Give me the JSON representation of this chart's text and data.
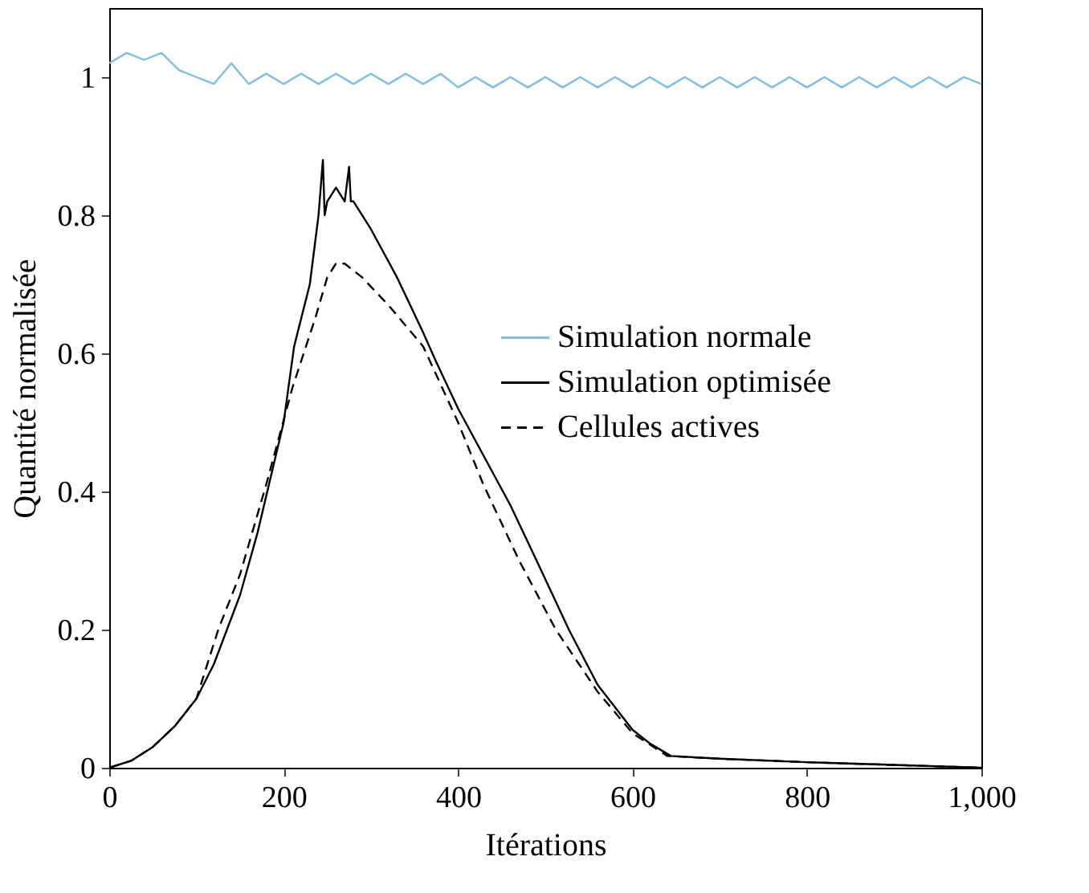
{
  "chart_data": {
    "type": "line",
    "xlabel": "Itérations",
    "ylabel": "Quantité normalisée",
    "xlim": [
      0,
      1000
    ],
    "ylim": [
      0,
      1.1
    ],
    "xticks": [
      0,
      200,
      400,
      600,
      800,
      {
        "value": 1000,
        "label": "1,000"
      }
    ],
    "yticks": [
      0,
      0.2,
      0.4,
      0.6,
      0.8,
      1
    ],
    "grid": false,
    "legend": "right",
    "series": [
      {
        "name": "Simulation normale",
        "color": "#7fbce6",
        "line_style": "solid",
        "x": [
          0,
          20,
          40,
          60,
          80,
          100,
          120,
          140,
          160,
          180,
          200,
          220,
          240,
          260,
          280,
          300,
          320,
          340,
          360,
          380,
          400,
          420,
          440,
          460,
          480,
          500,
          520,
          540,
          560,
          580,
          600,
          620,
          640,
          660,
          680,
          700,
          720,
          740,
          760,
          780,
          800,
          820,
          840,
          860,
          880,
          900,
          920,
          940,
          960,
          980,
          1000
        ],
        "values": [
          1.02,
          1.035,
          1.025,
          1.035,
          1.01,
          1.0,
          0.99,
          1.02,
          0.99,
          1.005,
          0.99,
          1.005,
          0.99,
          1.005,
          0.99,
          1.005,
          0.99,
          1.005,
          0.99,
          1.005,
          0.985,
          1.0,
          0.985,
          1.0,
          0.985,
          1.0,
          0.985,
          1.0,
          0.985,
          1.0,
          0.985,
          1.0,
          0.985,
          1.0,
          0.985,
          1.0,
          0.985,
          1.0,
          0.985,
          1.0,
          0.985,
          1.0,
          0.985,
          1.0,
          0.985,
          1.0,
          0.985,
          1.0,
          0.985,
          1.0,
          0.99
        ]
      },
      {
        "name": "Simulation optimisée",
        "color": "#000000",
        "line_style": "solid",
        "x": [
          0,
          25,
          50,
          75,
          100,
          120,
          150,
          170,
          200,
          212,
          230,
          240,
          245,
          247,
          250,
          260,
          270,
          275,
          277,
          280,
          300,
          330,
          360,
          374,
          400,
          430,
          460,
          490,
          527,
          560,
          600,
          620,
          644,
          700,
          800,
          900,
          1000
        ],
        "values": [
          0,
          0.01,
          0.03,
          0.06,
          0.1,
          0.15,
          0.25,
          0.34,
          0.5,
          0.61,
          0.7,
          0.8,
          0.88,
          0.8,
          0.82,
          0.84,
          0.82,
          0.87,
          0.82,
          0.82,
          0.78,
          0.71,
          0.63,
          0.59,
          0.52,
          0.45,
          0.38,
          0.3,
          0.2,
          0.12,
          0.055,
          0.035,
          0.017,
          0.013,
          0.008,
          0.004,
          0.0
        ]
      },
      {
        "name": "Cellules actives",
        "color": "#000000",
        "line_style": "dashed",
        "x": [
          0,
          25,
          50,
          75,
          100,
          125,
          150,
          180,
          210,
          236,
          250,
          260,
          270,
          290,
          320,
          360,
          400,
          429,
          470,
          512,
          560,
          600,
          640,
          700,
          800,
          900,
          1000
        ],
        "values": [
          0,
          0.01,
          0.03,
          0.06,
          0.1,
          0.2,
          0.28,
          0.41,
          0.55,
          0.65,
          0.71,
          0.73,
          0.73,
          0.71,
          0.67,
          0.61,
          0.5,
          0.41,
          0.3,
          0.2,
          0.11,
          0.05,
          0.017,
          0.013,
          0.008,
          0.004,
          0.0
        ]
      }
    ]
  }
}
